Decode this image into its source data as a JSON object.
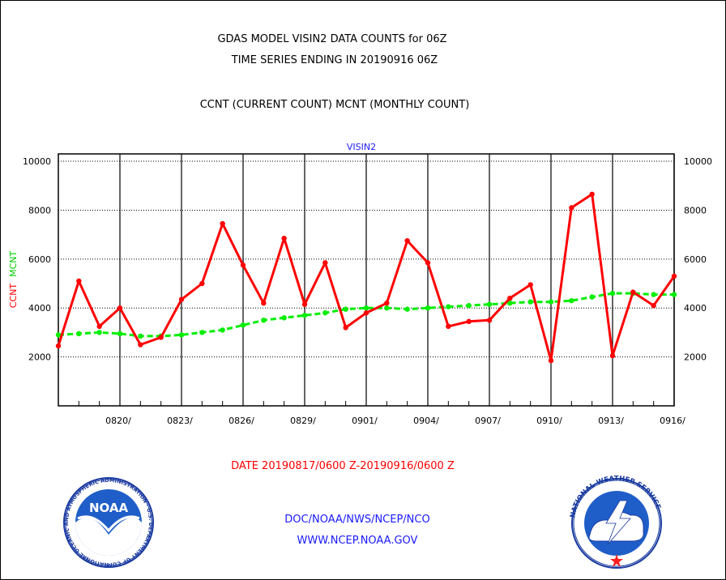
{
  "header": {
    "title_line1": "GDAS MODEL VISIN2 DATA COUNTS for 06Z",
    "title_line2": "TIME SERIES ENDING IN 20190916 06Z",
    "subtitle": "CCNT (CURRENT COUNT) MCNT (MONTHLY COUNT)"
  },
  "footer": {
    "date_range": "DATE 20190817/0600 Z-20190916/0600 Z",
    "org_line": "DOC/NOAA/NWS/NCEP/NCO",
    "url_line": "WWW.NCEP.NOAA.GOV"
  },
  "logos": {
    "noaa_text": "NOAA",
    "noaa_ring": "NATIONAL OCEANIC AND ATMOSPHERIC ADMINISTRATION · U.S. DEPARTMENT OF COMMERCE ·",
    "nws_ring": "NATIONAL WEATHER SERVICE"
  },
  "colors": {
    "ccnt": "#ff0000",
    "mcnt": "#00ee00",
    "text_blue": "#1a1aff",
    "text_red": "#ff0000",
    "grid": "#000000"
  },
  "chart_data": {
    "type": "line",
    "title": "VISIN2",
    "ylabel_series": [
      "CCNT",
      "MCNT"
    ],
    "ylim": [
      0,
      10300
    ],
    "y_ticks": [
      2000,
      4000,
      6000,
      8000,
      10000
    ],
    "y_tick_labels": [
      "2000",
      "4000",
      "6000",
      "8000",
      "10000"
    ],
    "x_range": [
      0,
      30
    ],
    "x_ticks": [
      3,
      6,
      9,
      12,
      15,
      18,
      21,
      24,
      27,
      30
    ],
    "x_tick_labels": [
      "0820/",
      "0823/",
      "0826/",
      "0829/",
      "0901/",
      "0904/",
      "0907/",
      "0910/",
      "0913/",
      "0916/"
    ],
    "grid": true,
    "series": [
      {
        "name": "CCNT",
        "x": [
          0,
          1,
          2,
          3,
          4,
          5,
          6,
          7,
          8,
          9,
          10,
          11,
          12,
          13,
          14,
          15,
          16,
          17,
          18,
          19,
          20,
          21,
          22,
          23,
          24,
          25,
          26,
          27,
          28,
          29,
          30
        ],
        "values": [
          2450,
          5100,
          3250,
          4000,
          2500,
          2800,
          4350,
          5000,
          7450,
          5750,
          4200,
          6850,
          4150,
          5850,
          3200,
          3800,
          4200,
          6750,
          5850,
          3250,
          3450,
          3500,
          4400,
          4950,
          1850,
          8100,
          8650,
          2050,
          4650,
          4100,
          5300
        ]
      },
      {
        "name": "MCNT",
        "x": [
          0,
          1,
          2,
          3,
          4,
          5,
          6,
          7,
          8,
          9,
          10,
          11,
          12,
          13,
          14,
          15,
          16,
          17,
          18,
          19,
          20,
          21,
          22,
          23,
          24,
          25,
          26,
          27,
          28,
          29,
          30
        ],
        "values": [
          2900,
          2950,
          3000,
          2950,
          2850,
          2850,
          2900,
          3000,
          3100,
          3300,
          3500,
          3600,
          3700,
          3800,
          3950,
          4000,
          4000,
          3950,
          4000,
          4050,
          4100,
          4150,
          4200,
          4250,
          4250,
          4300,
          4450,
          4600,
          4600,
          4550,
          4550
        ]
      }
    ]
  }
}
